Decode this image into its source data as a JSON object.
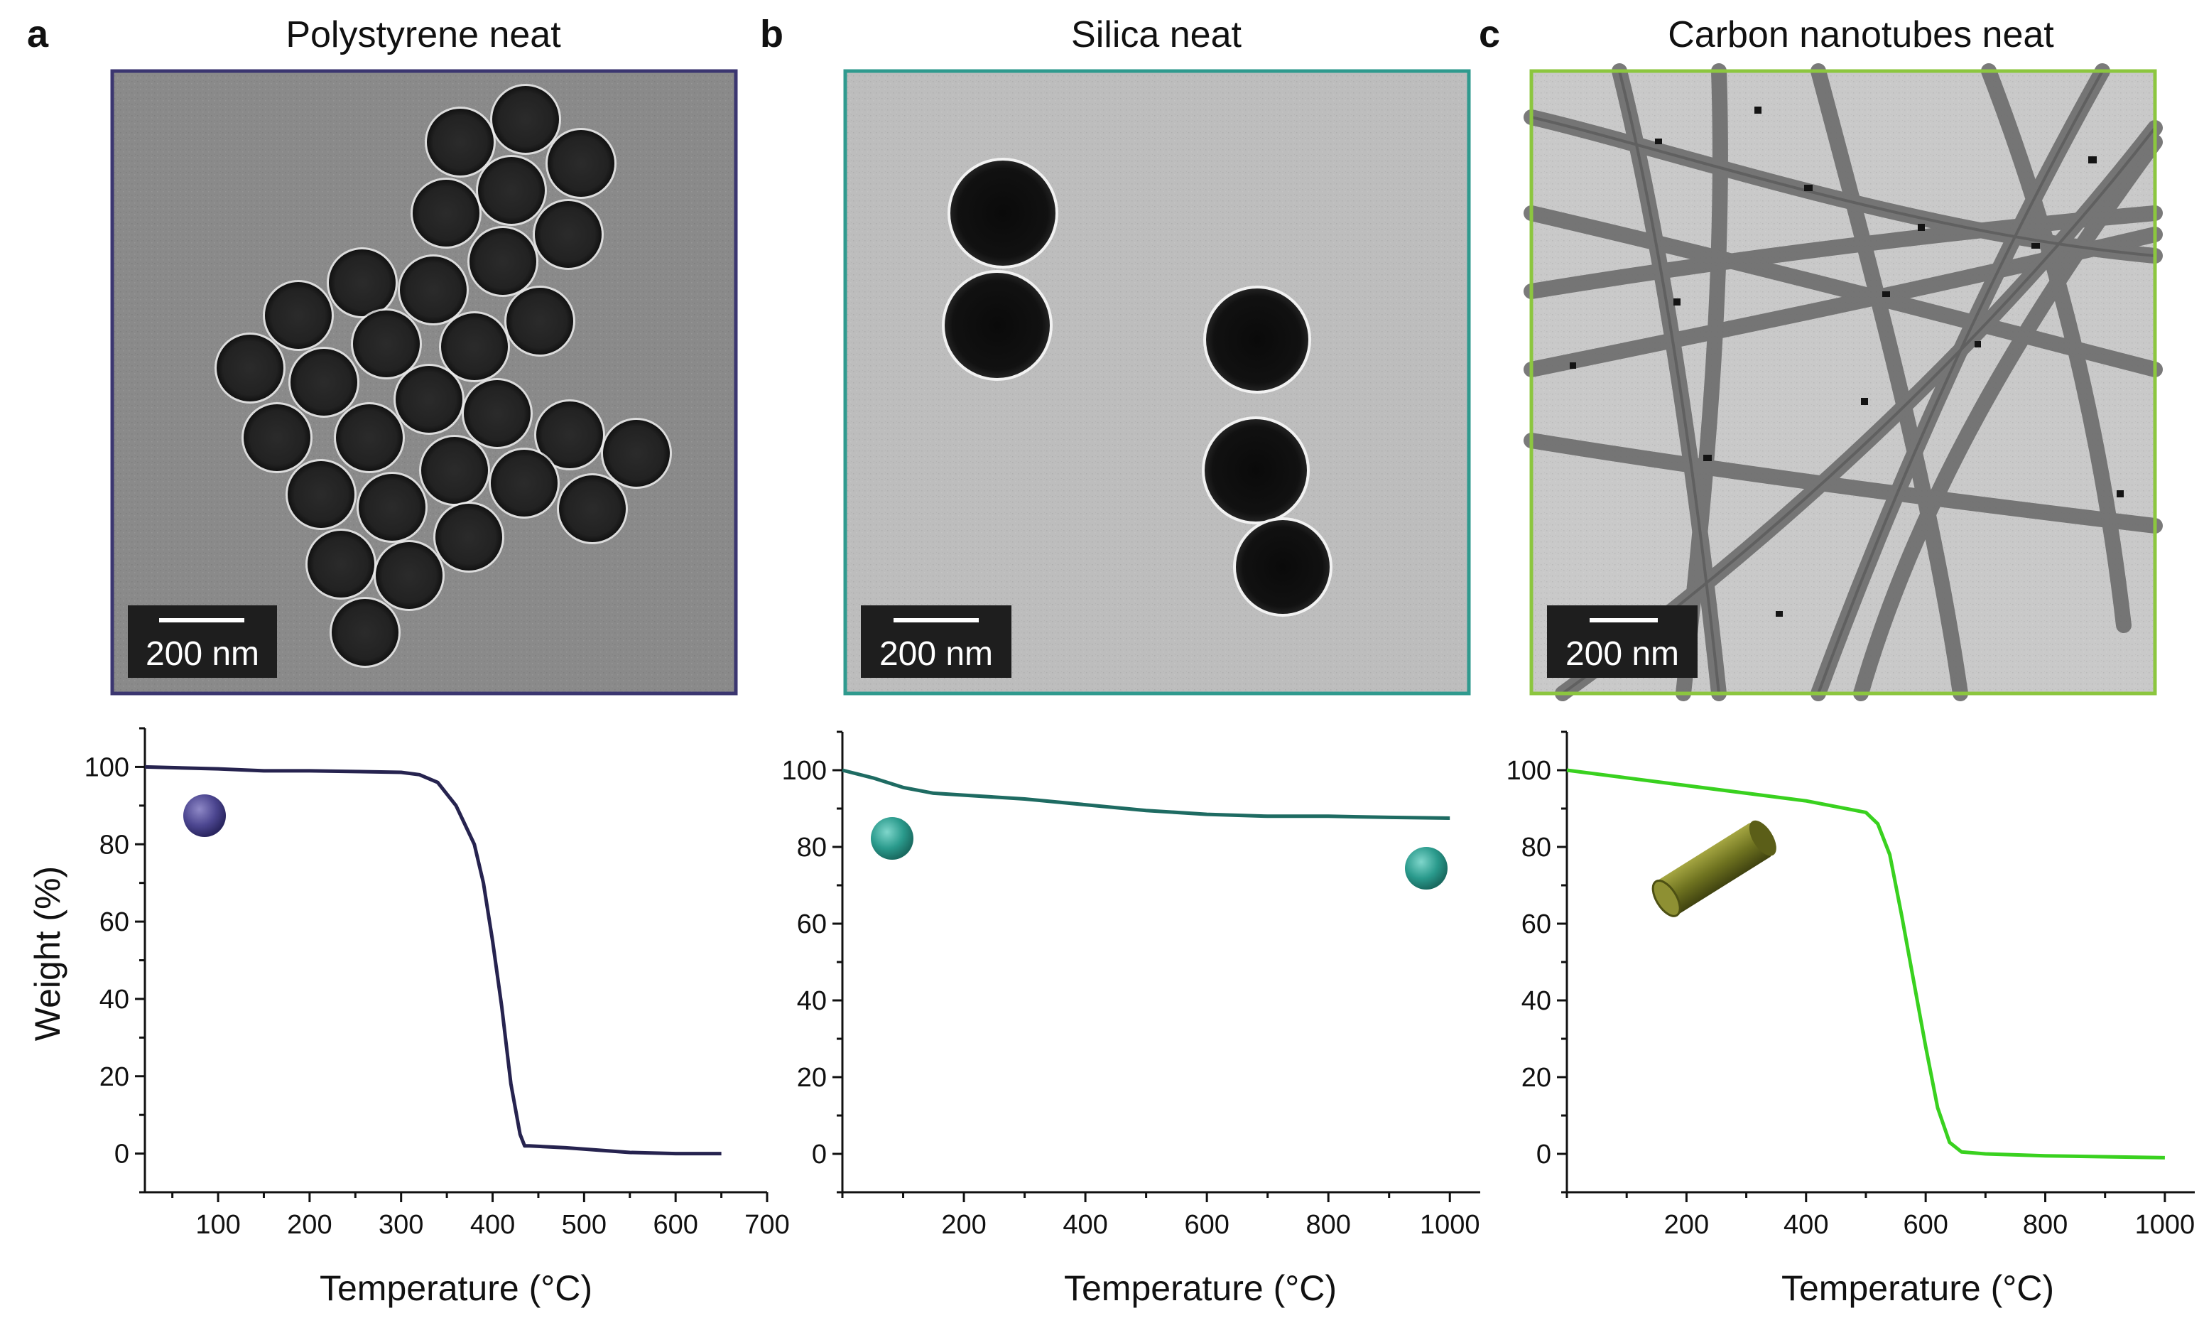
{
  "panels": [
    {
      "letter": "a",
      "title": "Polystyrene neat",
      "scale_bar": "200 nm",
      "frame_color": "#3b3670"
    },
    {
      "letter": "b",
      "title": "Silica neat",
      "scale_bar": "200 nm",
      "frame_color": "#2f9a8e"
    },
    {
      "letter": "c",
      "title": "Carbon nanotubes neat",
      "scale_bar": "200 nm",
      "frame_color": "#8cc63f"
    }
  ],
  "chart_data": [
    {
      "type": "line",
      "title": "Polystyrene neat",
      "xlabel": "Temperature (°C)",
      "ylabel": "Weight (%)",
      "xlim": [
        20,
        700
      ],
      "ylim": [
        -10,
        110
      ],
      "xticks": [
        100,
        200,
        300,
        400,
        500,
        600,
        700
      ],
      "yticks": [
        0,
        20,
        40,
        60,
        80,
        100
      ],
      "series": [
        {
          "name": "Polystyrene",
          "color": "#26234f",
          "x": [
            20,
            100,
            150,
            200,
            250,
            300,
            320,
            340,
            360,
            380,
            390,
            400,
            410,
            420,
            430,
            435,
            440,
            480,
            550,
            600,
            650
          ],
          "y": [
            100,
            99.5,
            99,
            99,
            98.8,
            98.6,
            98,
            96,
            90,
            80,
            70,
            55,
            38,
            18,
            5,
            2,
            2,
            1.5,
            0.3,
            0,
            0
          ]
        }
      ],
      "marker": "sphere-purple"
    },
    {
      "type": "line",
      "title": "Silica neat",
      "xlabel": "Temperature (°C)",
      "ylabel": "",
      "xlim": [
        0,
        1050
      ],
      "ylim": [
        -10,
        110
      ],
      "xticks": [
        200,
        400,
        600,
        800,
        1000
      ],
      "yticks": [
        0,
        20,
        40,
        60,
        80,
        100
      ],
      "series": [
        {
          "name": "Silica",
          "color": "#1e6b62",
          "x": [
            0,
            50,
            100,
            150,
            200,
            300,
            400,
            500,
            600,
            700,
            800,
            900,
            1000
          ],
          "y": [
            100,
            98,
            95.5,
            94,
            93.5,
            92.5,
            91,
            89.5,
            88.5,
            88,
            88,
            87.7,
            87.5
          ]
        }
      ],
      "marker": "sphere-teal"
    },
    {
      "type": "line",
      "title": "Carbon nanotubes neat",
      "xlabel": "Temperature (°C)",
      "ylabel": "",
      "xlim": [
        0,
        1050
      ],
      "ylim": [
        -10,
        110
      ],
      "xticks": [
        200,
        400,
        600,
        800,
        1000
      ],
      "yticks": [
        0,
        20,
        40,
        60,
        80,
        100
      ],
      "series": [
        {
          "name": "Carbon nanotubes",
          "color": "#39d11f",
          "x": [
            0,
            100,
            200,
            300,
            400,
            500,
            520,
            540,
            560,
            580,
            600,
            620,
            640,
            660,
            700,
            800,
            1000
          ],
          "y": [
            100,
            98,
            96,
            94,
            92,
            89,
            86,
            78,
            62,
            45,
            28,
            12,
            3,
            0.5,
            0,
            -0.5,
            -1
          ]
        }
      ],
      "marker": "tube-olive"
    }
  ]
}
